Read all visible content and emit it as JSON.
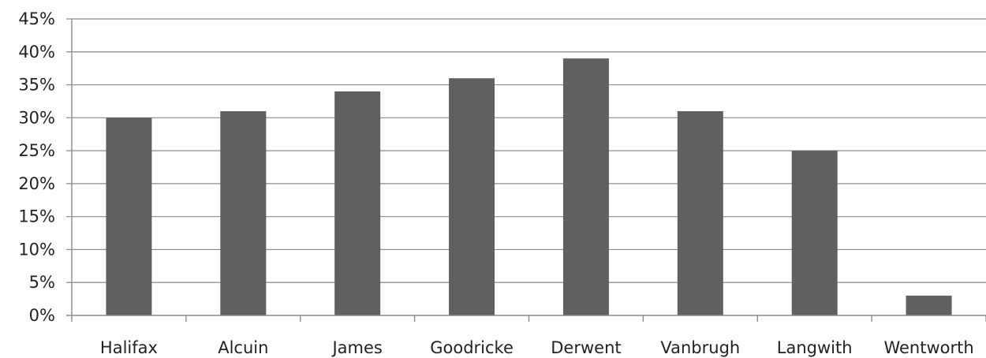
{
  "chart_data": {
    "type": "bar",
    "categories": [
      "Halifax",
      "Alcuin",
      "James",
      "Goodricke",
      "Derwent",
      "Vanbrugh",
      "Langwith",
      "Wentworth"
    ],
    "values": [
      30,
      31,
      34,
      36,
      39,
      31,
      25,
      3
    ],
    "ylim": [
      0,
      45
    ],
    "yticks": [
      "0%",
      "5%",
      "10%",
      "15%",
      "20%",
      "25%",
      "30%",
      "35%",
      "40%",
      "45%"
    ],
    "grid": true,
    "bar_color": "#606060",
    "title": "",
    "xlabel": "",
    "ylabel": ""
  }
}
